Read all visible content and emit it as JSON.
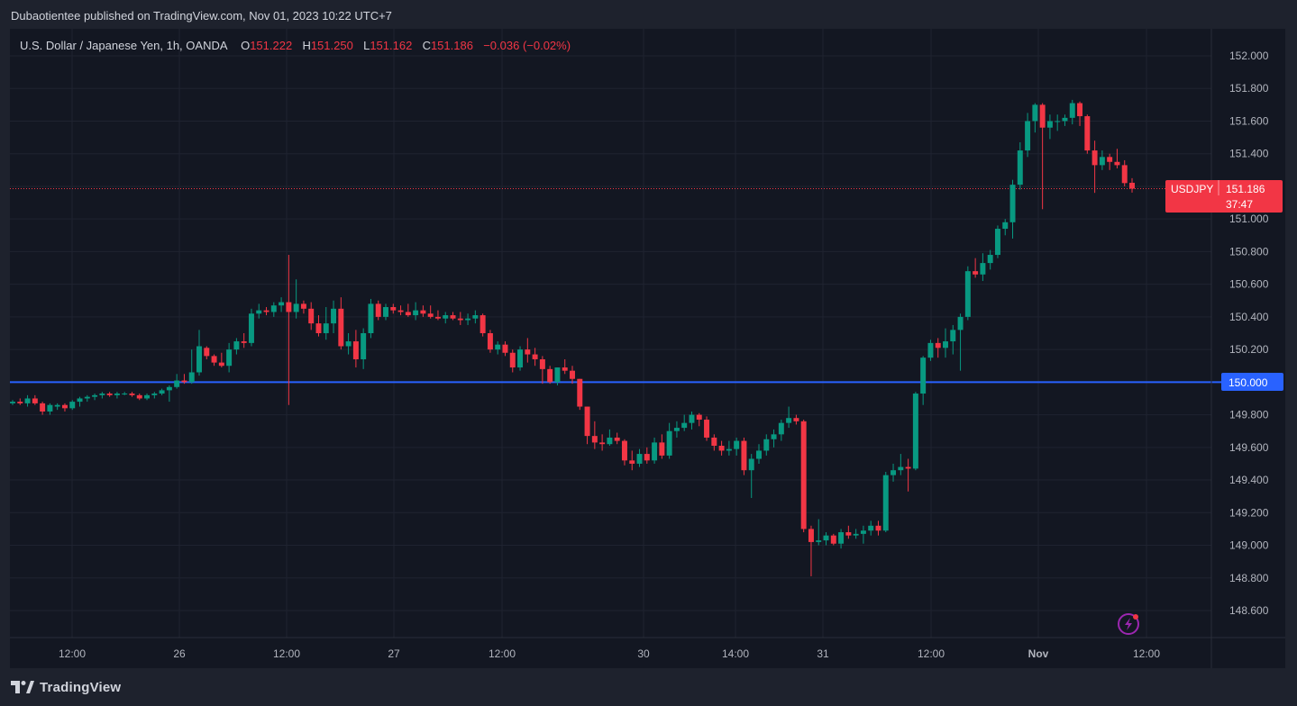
{
  "header": {
    "published": "Dubaotientee published on TradingView.com, Nov 01, 2023 10:22 UTC+7"
  },
  "legend": {
    "symbol": "U.S. Dollar / Japanese Yen, 1h, OANDA",
    "o_label": "O",
    "o": "151.222",
    "h_label": "H",
    "h": "151.250",
    "l_label": "L",
    "l": "151.162",
    "c_label": "C",
    "c": "151.186",
    "change": "−0.036 (−0.02%)"
  },
  "price_tags": {
    "current_symbol": "USDJPY",
    "current_price": "151.186",
    "countdown": "37:47",
    "level_price": "150.000"
  },
  "footer": {
    "brand": "TradingView"
  },
  "colors": {
    "up": "#089981",
    "down": "#f23645",
    "level": "#2962ff",
    "background": "#131722",
    "grid": "#1f2330"
  },
  "chart_data": {
    "type": "candlestick",
    "symbol": "USDJPY",
    "timeframe": "1h",
    "ylim": [
      148.5,
      152.05
    ],
    "y_ticks": [
      "152.000",
      "151.800",
      "151.600",
      "151.400",
      "151.200",
      "151.000",
      "150.800",
      "150.600",
      "150.400",
      "150.200",
      "150.000",
      "149.800",
      "149.600",
      "149.400",
      "149.200",
      "149.000",
      "148.800",
      "148.600"
    ],
    "x_ticks": [
      "12:00",
      "26",
      "12:00",
      "27",
      "12:00",
      "30",
      "14:00",
      "31",
      "12:00",
      "Nov",
      "12:00"
    ],
    "horizontal_line": 150.0,
    "last_price": 151.186,
    "candles": [
      [
        149.87,
        149.89,
        149.86,
        149.88
      ],
      [
        149.88,
        149.9,
        149.86,
        149.87
      ],
      [
        149.87,
        149.92,
        149.85,
        149.9
      ],
      [
        149.9,
        149.92,
        149.86,
        149.87
      ],
      [
        149.87,
        149.88,
        149.8,
        149.82
      ],
      [
        149.82,
        149.87,
        149.8,
        149.86
      ],
      [
        149.85,
        149.87,
        149.83,
        149.86
      ],
      [
        149.86,
        149.87,
        149.82,
        149.84
      ],
      [
        149.84,
        149.89,
        149.83,
        149.88
      ],
      [
        149.88,
        149.91,
        149.85,
        149.9
      ],
      [
        149.9,
        149.92,
        149.88,
        149.91
      ],
      [
        149.91,
        149.93,
        149.89,
        149.92
      ],
      [
        149.92,
        149.94,
        149.9,
        149.93
      ],
      [
        149.93,
        149.94,
        149.91,
        149.92
      ],
      [
        149.92,
        149.94,
        149.9,
        149.93
      ],
      [
        149.93,
        149.94,
        149.92,
        149.93
      ],
      [
        149.93,
        149.94,
        149.91,
        149.92
      ],
      [
        149.92,
        149.93,
        149.89,
        149.9
      ],
      [
        149.9,
        149.93,
        149.89,
        149.92
      ],
      [
        149.92,
        149.94,
        149.9,
        149.93
      ],
      [
        149.93,
        149.96,
        149.92,
        149.95
      ],
      [
        149.95,
        149.98,
        149.88,
        149.97
      ],
      [
        149.97,
        150.05,
        149.96,
        150.01
      ],
      [
        150.01,
        150.05,
        149.99,
        150.0
      ],
      [
        150.0,
        150.2,
        149.99,
        150.06
      ],
      [
        150.06,
        150.32,
        150.04,
        150.22
      ],
      [
        150.21,
        150.22,
        150.14,
        150.16
      ],
      [
        150.16,
        150.17,
        150.1,
        150.12
      ],
      [
        150.12,
        150.18,
        150.09,
        150.1
      ],
      [
        150.1,
        150.24,
        150.06,
        150.2
      ],
      [
        150.2,
        150.27,
        150.17,
        150.25
      ],
      [
        150.25,
        150.3,
        150.21,
        150.24
      ],
      [
        150.24,
        150.45,
        150.22,
        150.42
      ],
      [
        150.42,
        150.48,
        150.39,
        150.44
      ],
      [
        150.44,
        150.46,
        150.41,
        150.43
      ],
      [
        150.43,
        150.49,
        150.4,
        150.47
      ],
      [
        150.47,
        150.52,
        150.43,
        150.49
      ],
      [
        150.49,
        150.78,
        149.86,
        150.43
      ],
      [
        150.43,
        150.63,
        150.39,
        150.48
      ],
      [
        150.48,
        150.5,
        150.42,
        150.45
      ],
      [
        150.45,
        150.49,
        150.32,
        150.36
      ],
      [
        150.36,
        150.41,
        150.28,
        150.3
      ],
      [
        150.3,
        150.46,
        150.26,
        150.36
      ],
      [
        150.36,
        150.5,
        150.3,
        150.45
      ],
      [
        150.45,
        150.52,
        150.2,
        150.22
      ],
      [
        150.22,
        150.3,
        150.17,
        150.25
      ],
      [
        150.25,
        150.32,
        150.09,
        150.14
      ],
      [
        150.14,
        150.33,
        150.08,
        150.3
      ],
      [
        150.3,
        150.51,
        150.27,
        150.48
      ],
      [
        150.48,
        150.5,
        150.38,
        150.4
      ],
      [
        150.4,
        150.48,
        150.38,
        150.46
      ],
      [
        150.46,
        150.48,
        150.42,
        150.44
      ],
      [
        150.44,
        150.47,
        150.41,
        150.43
      ],
      [
        150.43,
        150.48,
        150.4,
        150.41
      ],
      [
        150.41,
        150.49,
        150.38,
        150.44
      ],
      [
        150.44,
        150.47,
        150.4,
        150.42
      ],
      [
        150.42,
        150.47,
        150.39,
        150.4
      ],
      [
        150.4,
        150.44,
        150.38,
        150.39
      ],
      [
        150.39,
        150.43,
        150.36,
        150.41
      ],
      [
        150.41,
        150.43,
        150.38,
        150.39
      ],
      [
        150.39,
        150.43,
        150.35,
        150.38
      ],
      [
        150.38,
        150.42,
        150.35,
        150.39
      ],
      [
        150.39,
        150.44,
        150.36,
        150.41
      ],
      [
        150.41,
        150.42,
        150.28,
        150.3
      ],
      [
        150.3,
        150.32,
        150.18,
        150.2
      ],
      [
        150.2,
        150.25,
        150.17,
        150.23
      ],
      [
        150.23,
        150.25,
        150.16,
        150.18
      ],
      [
        150.18,
        150.2,
        150.06,
        150.09
      ],
      [
        150.09,
        150.22,
        150.07,
        150.2
      ],
      [
        150.2,
        150.27,
        150.12,
        150.17
      ],
      [
        150.17,
        150.21,
        150.1,
        150.14
      ],
      [
        150.14,
        150.16,
        149.99,
        150.08
      ],
      [
        150.08,
        150.1,
        149.99,
        150.0
      ],
      [
        150.0,
        150.09,
        149.98,
        150.09
      ],
      [
        150.09,
        150.14,
        150.05,
        150.07
      ],
      [
        150.07,
        150.1,
        149.99,
        150.02
      ],
      [
        150.02,
        150.02,
        149.83,
        149.85
      ],
      [
        149.85,
        149.85,
        149.62,
        149.67
      ],
      [
        149.67,
        149.76,
        149.59,
        149.63
      ],
      [
        149.63,
        149.68,
        149.58,
        149.62
      ],
      [
        149.62,
        149.71,
        149.61,
        149.66
      ],
      [
        149.66,
        149.69,
        149.62,
        149.64
      ],
      [
        149.64,
        149.65,
        149.49,
        149.52
      ],
      [
        149.52,
        149.58,
        149.46,
        149.5
      ],
      [
        149.5,
        149.59,
        149.48,
        149.56
      ],
      [
        149.56,
        149.6,
        149.5,
        149.52
      ],
      [
        149.52,
        149.66,
        149.5,
        149.63
      ],
      [
        149.63,
        149.68,
        149.53,
        149.55
      ],
      [
        149.55,
        149.75,
        149.53,
        149.7
      ],
      [
        149.7,
        149.76,
        149.66,
        149.72
      ],
      [
        149.72,
        149.8,
        149.7,
        149.75
      ],
      [
        149.75,
        149.82,
        149.71,
        149.8
      ],
      [
        149.8,
        149.81,
        149.73,
        149.77
      ],
      [
        149.77,
        149.79,
        149.64,
        149.66
      ],
      [
        149.66,
        149.68,
        149.58,
        149.61
      ],
      [
        149.61,
        149.64,
        149.55,
        149.58
      ],
      [
        149.58,
        149.64,
        149.55,
        149.59
      ],
      [
        149.59,
        149.66,
        149.55,
        149.64
      ],
      [
        149.64,
        149.66,
        149.43,
        149.46
      ],
      [
        149.46,
        149.56,
        149.29,
        149.53
      ],
      [
        149.53,
        149.62,
        149.5,
        149.58
      ],
      [
        149.58,
        149.68,
        149.55,
        149.65
      ],
      [
        149.65,
        149.71,
        149.6,
        149.68
      ],
      [
        149.68,
        149.77,
        149.64,
        149.75
      ],
      [
        149.75,
        149.85,
        149.72,
        149.78
      ],
      [
        149.78,
        149.8,
        149.74,
        149.76
      ],
      [
        149.76,
        149.77,
        149.08,
        149.1
      ],
      [
        149.1,
        149.12,
        148.81,
        149.02
      ],
      [
        149.02,
        149.16,
        149.0,
        149.03
      ],
      [
        149.03,
        149.08,
        149.0,
        149.06
      ],
      [
        149.06,
        149.07,
        149.0,
        149.01
      ],
      [
        149.01,
        149.1,
        148.98,
        149.08
      ],
      [
        149.08,
        149.12,
        149.04,
        149.06
      ],
      [
        149.06,
        149.1,
        149.04,
        149.07
      ],
      [
        149.07,
        149.12,
        149.01,
        149.09
      ],
      [
        149.09,
        149.15,
        149.06,
        149.12
      ],
      [
        149.12,
        149.15,
        149.06,
        149.09
      ],
      [
        149.09,
        149.45,
        149.08,
        149.43
      ],
      [
        149.43,
        149.5,
        149.39,
        149.46
      ],
      [
        149.46,
        149.56,
        149.43,
        149.48
      ],
      [
        149.48,
        149.53,
        149.33,
        149.47
      ],
      [
        149.47,
        149.94,
        149.46,
        149.93
      ],
      [
        149.93,
        150.16,
        149.86,
        150.15
      ],
      [
        150.15,
        150.26,
        150.13,
        150.24
      ],
      [
        150.24,
        150.27,
        150.15,
        150.21
      ],
      [
        150.21,
        150.33,
        150.15,
        150.25
      ],
      [
        150.25,
        150.35,
        150.17,
        150.32
      ],
      [
        150.32,
        150.42,
        150.07,
        150.4
      ],
      [
        150.4,
        150.71,
        150.38,
        150.68
      ],
      [
        150.68,
        150.76,
        150.64,
        150.66
      ],
      [
        150.66,
        150.79,
        150.62,
        150.73
      ],
      [
        150.73,
        150.81,
        150.69,
        150.78
      ],
      [
        150.78,
        150.96,
        150.76,
        150.94
      ],
      [
        150.94,
        151.0,
        150.9,
        150.98
      ],
      [
        150.98,
        151.24,
        150.88,
        151.21
      ],
      [
        151.21,
        151.47,
        151.18,
        151.42
      ],
      [
        151.42,
        151.65,
        151.38,
        151.6
      ],
      [
        151.6,
        151.71,
        151.53,
        151.7
      ],
      [
        151.7,
        151.71,
        151.06,
        151.56
      ],
      [
        151.56,
        151.64,
        151.49,
        151.6
      ],
      [
        151.6,
        151.64,
        151.54,
        151.6
      ],
      [
        151.6,
        151.64,
        151.57,
        151.62
      ],
      [
        151.62,
        151.73,
        151.58,
        151.71
      ],
      [
        151.71,
        151.72,
        151.57,
        151.63
      ],
      [
        151.63,
        151.64,
        151.4,
        151.42
      ],
      [
        151.42,
        151.48,
        151.16,
        151.33
      ],
      [
        151.33,
        151.42,
        151.3,
        151.38
      ],
      [
        151.38,
        151.4,
        151.3,
        151.35
      ],
      [
        151.35,
        151.43,
        151.31,
        151.33
      ],
      [
        151.33,
        151.36,
        151.2,
        151.22
      ],
      [
        151.222,
        151.25,
        151.162,
        151.186
      ]
    ]
  }
}
